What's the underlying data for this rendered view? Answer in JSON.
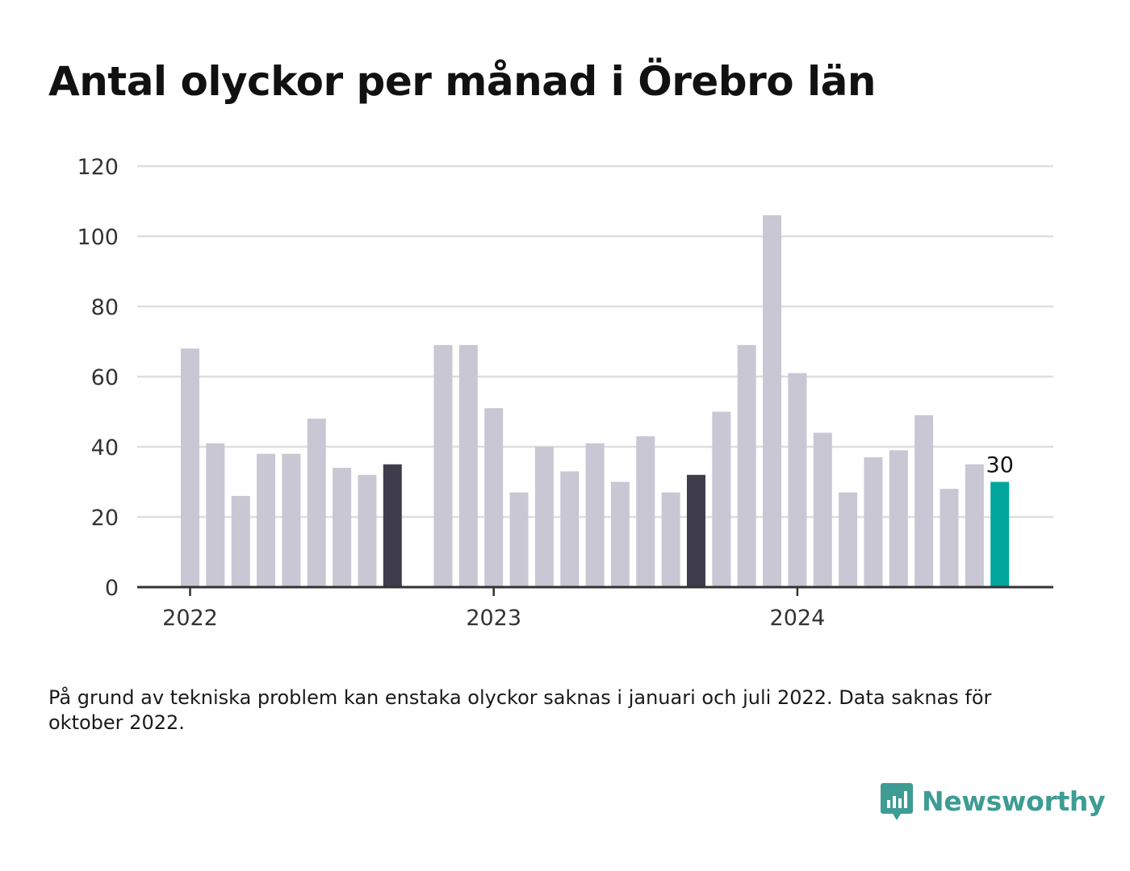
{
  "title": "Antal olyckor per månad i Örebro län",
  "footnote": "På grund av tekniska problem kan enstaka olyckor saknas i januari och juli 2022. Data saknas för oktober 2022.",
  "brand": {
    "name": "Newsworthy",
    "icon": "newsworthy-logo-icon"
  },
  "colors": {
    "bar_default": "#c8c7d3",
    "bar_highlight": "#3f3d4b",
    "bar_latest": "#00a69b",
    "grid": "#dedede",
    "axis": "#333333",
    "brand": "#3d9c94"
  },
  "chart_data": {
    "type": "bar",
    "title": "Antal olyckor per månad i Örebro län",
    "xlabel": "",
    "ylabel": "",
    "ylim": [
      0,
      120
    ],
    "yticks": [
      0,
      20,
      40,
      60,
      80,
      100,
      120
    ],
    "xtick_labels": [
      {
        "label": "2022",
        "month": "2022-01"
      },
      {
        "label": "2023",
        "month": "2023-01"
      },
      {
        "label": "2024",
        "month": "2024-01"
      }
    ],
    "grid": true,
    "months": [
      "2022-01",
      "2022-02",
      "2022-03",
      "2022-04",
      "2022-05",
      "2022-06",
      "2022-07",
      "2022-08",
      "2022-09",
      "2022-10",
      "2022-11",
      "2022-12",
      "2023-01",
      "2023-02",
      "2023-03",
      "2023-04",
      "2023-05",
      "2023-06",
      "2023-07",
      "2023-08",
      "2023-09",
      "2023-10",
      "2023-11",
      "2023-12",
      "2024-01",
      "2024-02",
      "2024-03",
      "2024-04",
      "2024-05",
      "2024-06",
      "2024-07",
      "2024-08",
      "2024-09",
      "2024-10"
    ],
    "values": [
      68,
      41,
      26,
      38,
      38,
      48,
      34,
      32,
      35,
      null,
      69,
      69,
      51,
      27,
      40,
      33,
      41,
      30,
      43,
      27,
      32,
      50,
      69,
      106,
      61,
      44,
      27,
      37,
      39,
      49,
      28,
      35,
      30,
      null
    ],
    "highlighted_months": [
      "2022-09",
      "2023-09"
    ],
    "latest_month": "2024-09",
    "data_labels": [
      {
        "month": "2024-09",
        "value": 30,
        "text": "30"
      }
    ]
  }
}
